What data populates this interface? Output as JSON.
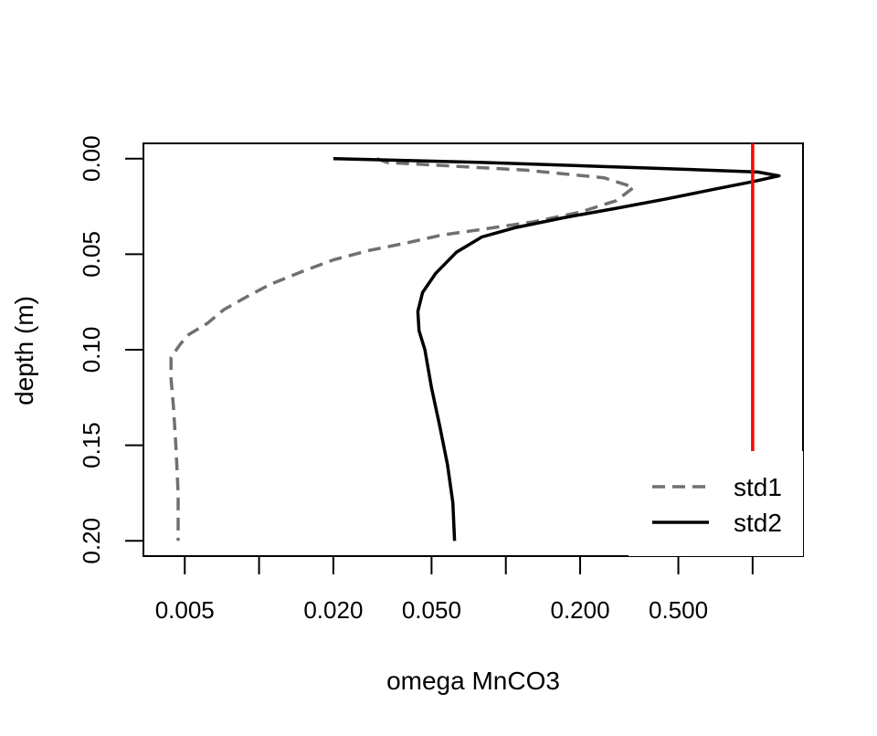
{
  "chart_data": {
    "type": "line",
    "title": "",
    "xlabel": "omega MnCO3",
    "ylabel": "depth (m)",
    "x_scale": "log",
    "xlim": [
      0.0034,
      1.6
    ],
    "ylim": [
      0.208,
      -0.008
    ],
    "x_ticks": [
      0.005,
      0.01,
      0.02,
      0.05,
      0.1,
      0.2,
      0.5,
      1
    ],
    "x_tick_labels": [
      "0.005",
      "",
      "0.020",
      "0.050",
      "",
      "0.200",
      "0.500",
      ""
    ],
    "y_ticks": [
      0.0,
      0.05,
      0.1,
      0.15,
      0.2
    ],
    "y_tick_labels": [
      "0.00",
      "0.05",
      "0.10",
      "0.15",
      "0.20"
    ],
    "grid": false,
    "legend_position": "bottom-right",
    "reference_line": {
      "x": 1.0,
      "color": "#ff0000"
    },
    "series": [
      {
        "name": "std1",
        "style": "dashed",
        "color": "#707070",
        "points": [
          [
            0.03,
            0.0
          ],
          [
            0.033,
            0.002
          ],
          [
            0.12,
            0.006
          ],
          [
            0.25,
            0.01
          ],
          [
            0.33,
            0.015
          ],
          [
            0.28,
            0.022
          ],
          [
            0.2,
            0.028
          ],
          [
            0.13,
            0.033
          ],
          [
            0.08,
            0.037
          ],
          [
            0.055,
            0.04
          ],
          [
            0.04,
            0.044
          ],
          [
            0.028,
            0.048
          ],
          [
            0.02,
            0.053
          ],
          [
            0.015,
            0.059
          ],
          [
            0.011,
            0.066
          ],
          [
            0.009,
            0.072
          ],
          [
            0.0072,
            0.079
          ],
          [
            0.0062,
            0.086
          ],
          [
            0.0052,
            0.092
          ],
          [
            0.0048,
            0.097
          ],
          [
            0.0044,
            0.104
          ],
          [
            0.0044,
            0.115
          ],
          [
            0.0045,
            0.13
          ],
          [
            0.0046,
            0.15
          ],
          [
            0.0047,
            0.175
          ],
          [
            0.0047,
            0.2
          ]
        ]
      },
      {
        "name": "std2",
        "style": "solid",
        "color": "#000000",
        "points": [
          [
            0.02,
            0.0
          ],
          [
            0.08,
            0.002
          ],
          [
            0.4,
            0.005
          ],
          [
            1.05,
            0.007
          ],
          [
            1.28,
            0.009
          ],
          [
            1.0,
            0.012
          ],
          [
            0.7,
            0.016
          ],
          [
            0.45,
            0.021
          ],
          [
            0.28,
            0.026
          ],
          [
            0.17,
            0.031
          ],
          [
            0.11,
            0.036
          ],
          [
            0.08,
            0.041
          ],
          [
            0.063,
            0.049
          ],
          [
            0.052,
            0.06
          ],
          [
            0.046,
            0.07
          ],
          [
            0.044,
            0.08
          ],
          [
            0.0445,
            0.09
          ],
          [
            0.047,
            0.1
          ],
          [
            0.05,
            0.12
          ],
          [
            0.054,
            0.14
          ],
          [
            0.058,
            0.16
          ],
          [
            0.061,
            0.18
          ],
          [
            0.062,
            0.2
          ]
        ]
      }
    ]
  }
}
